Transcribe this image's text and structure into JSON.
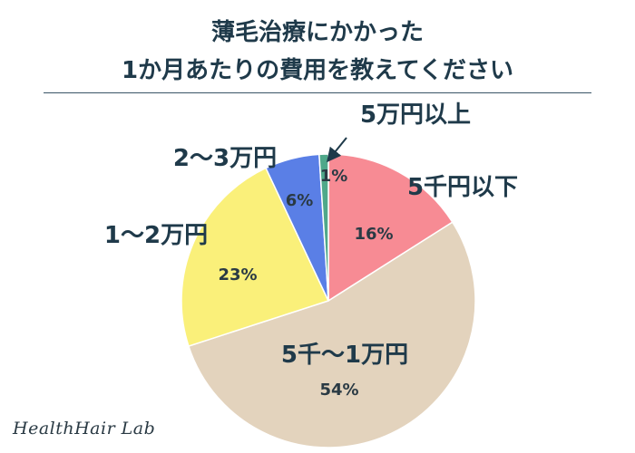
{
  "title_line1": "薄毛治療にかかった",
  "title_line2": "1か月あたりの費用を教えてください",
  "brand": "HealthHair Lab",
  "chart_data": {
    "type": "pie",
    "start": "top",
    "direction": "clockwise",
    "slices": [
      {
        "label": "5千円以下",
        "value": 16,
        "value_label": "16%",
        "color": "#f78b94"
      },
      {
        "label": "5千〜1万円",
        "value": 54,
        "value_label": "54%",
        "color": "#e3d3bd"
      },
      {
        "label": "1〜2万円",
        "value": 23,
        "value_label": "23%",
        "color": "#faf07a"
      },
      {
        "label": "2〜3万円",
        "value": 6,
        "value_label": "6%",
        "color": "#5a7fe6"
      },
      {
        "label": "5万円以上",
        "value": 1,
        "value_label": "1%",
        "color": "#4fa88a"
      }
    ]
  }
}
